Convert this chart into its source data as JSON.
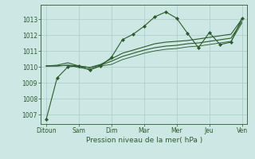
{
  "background_color": "#cde8e4",
  "grid_color": "#aaccc8",
  "line_color": "#2d5a2d",
  "x_labels": [
    "Ditoun",
    "Sam",
    "Dim",
    "Mar",
    "Mer",
    "Jeu",
    "Ven"
  ],
  "xlabel": "Pression niveau de la mer( hPa )",
  "ylim": [
    1006.4,
    1013.9
  ],
  "yticks": [
    1007,
    1008,
    1009,
    1010,
    1011,
    1012,
    1013
  ],
  "series1": [
    1006.7,
    1009.3,
    1010.0,
    1010.05,
    1009.8,
    1010.05,
    1010.6,
    1011.7,
    1012.05,
    1012.55,
    1013.15,
    1013.45,
    1013.05,
    1012.1,
    1011.2,
    1012.15,
    1011.4,
    1011.55,
    1013.05
  ],
  "series2": [
    1010.05,
    1010.05,
    1010.1,
    1010.05,
    1009.95,
    1010.1,
    1010.35,
    1010.65,
    1010.85,
    1011.05,
    1011.2,
    1011.3,
    1011.35,
    1011.45,
    1011.5,
    1011.6,
    1011.7,
    1011.8,
    1012.85
  ],
  "series3": [
    1010.05,
    1010.1,
    1010.25,
    1010.05,
    1009.95,
    1010.15,
    1010.5,
    1010.85,
    1011.05,
    1011.25,
    1011.45,
    1011.55,
    1011.6,
    1011.65,
    1011.75,
    1011.85,
    1011.95,
    1012.05,
    1013.0
  ],
  "series4": [
    1010.05,
    1010.05,
    1010.1,
    1009.95,
    1009.85,
    1010.05,
    1010.15,
    1010.45,
    1010.65,
    1010.85,
    1011.0,
    1011.1,
    1011.15,
    1011.25,
    1011.3,
    1011.4,
    1011.5,
    1011.6,
    1012.75
  ],
  "n_points": 19,
  "x_tick_positions": [
    0,
    3,
    6,
    9,
    12,
    15,
    18
  ],
  "marker_indices": [
    0,
    1,
    2,
    3,
    4,
    5,
    6,
    7,
    8,
    9,
    10,
    11,
    12,
    13,
    14,
    15,
    16,
    17,
    18
  ]
}
